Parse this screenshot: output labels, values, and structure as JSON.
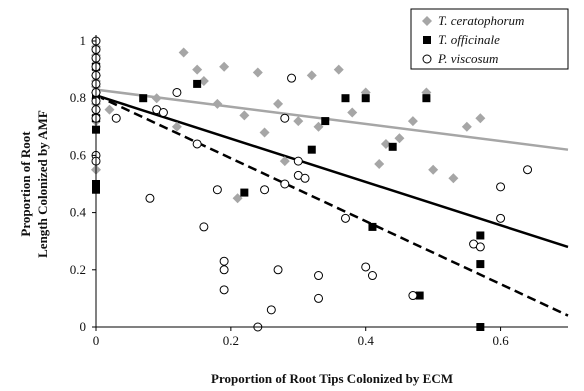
{
  "chart_data": {
    "type": "scatter",
    "xlabel": "Proportion of Root Tips Colonized by ECM",
    "ylabel": "Proportion of Root Length Colonized by AMF",
    "xlim": [
      0,
      0.7
    ],
    "ylim": [
      0,
      1
    ],
    "x_ticks": [
      "0",
      "0.2",
      "0.4",
      "0.6"
    ],
    "y_ticks": [
      "0",
      "0.2",
      "0.4",
      "0.6",
      "0.8",
      "1"
    ],
    "grid": false,
    "legend_position": "top-right",
    "series": [
      {
        "name": "T. ceratophorum",
        "marker": "diamond",
        "color": "#a6a6a6",
        "points": [
          [
            0.0,
            0.98
          ],
          [
            0.0,
            0.95
          ],
          [
            0.0,
            0.92
          ],
          [
            0.0,
            0.9
          ],
          [
            0.0,
            0.88
          ],
          [
            0.0,
            0.86
          ],
          [
            0.0,
            0.84
          ],
          [
            0.0,
            0.82
          ],
          [
            0.0,
            0.8
          ],
          [
            0.0,
            0.78
          ],
          [
            0.0,
            0.76
          ],
          [
            0.0,
            0.74
          ],
          [
            0.0,
            0.72
          ],
          [
            0.0,
            0.55
          ],
          [
            0.02,
            0.76
          ],
          [
            0.09,
            0.8
          ],
          [
            0.13,
            0.96
          ],
          [
            0.15,
            0.9
          ],
          [
            0.16,
            0.86
          ],
          [
            0.18,
            0.78
          ],
          [
            0.19,
            0.91
          ],
          [
            0.22,
            0.74
          ],
          [
            0.24,
            0.89
          ],
          [
            0.25,
            0.68
          ],
          [
            0.27,
            0.78
          ],
          [
            0.28,
            0.58
          ],
          [
            0.3,
            0.72
          ],
          [
            0.32,
            0.88
          ],
          [
            0.33,
            0.7
          ],
          [
            0.36,
            0.9
          ],
          [
            0.38,
            0.75
          ],
          [
            0.4,
            0.82
          ],
          [
            0.42,
            0.57
          ],
          [
            0.43,
            0.64
          ],
          [
            0.45,
            0.66
          ],
          [
            0.47,
            0.72
          ],
          [
            0.49,
            0.82
          ],
          [
            0.5,
            0.55
          ],
          [
            0.53,
            0.52
          ],
          [
            0.55,
            0.7
          ],
          [
            0.57,
            0.73
          ],
          [
            0.21,
            0.45
          ],
          [
            0.12,
            0.7
          ]
        ],
        "trendline": {
          "style": "solid",
          "color": "#a6a6a6",
          "x": [
            0,
            0.7
          ],
          "y": [
            0.83,
            0.62
          ]
        }
      },
      {
        "name": "T. officinale",
        "marker": "square",
        "color": "#000000",
        "points": [
          [
            0.0,
            0.91
          ],
          [
            0.0,
            0.81
          ],
          [
            0.0,
            0.73
          ],
          [
            0.0,
            0.69
          ],
          [
            0.0,
            0.5
          ],
          [
            0.0,
            0.48
          ],
          [
            0.07,
            0.8
          ],
          [
            0.15,
            0.85
          ],
          [
            0.22,
            0.47
          ],
          [
            0.32,
            0.62
          ],
          [
            0.34,
            0.72
          ],
          [
            0.37,
            0.8
          ],
          [
            0.4,
            0.8
          ],
          [
            0.41,
            0.35
          ],
          [
            0.44,
            0.63
          ],
          [
            0.48,
            0.11
          ],
          [
            0.49,
            0.8
          ],
          [
            0.57,
            0.32
          ],
          [
            0.57,
            0.22
          ],
          [
            0.57,
            0.0
          ]
        ],
        "trendline": {
          "style": "solid",
          "color": "#000000",
          "x": [
            0,
            0.7
          ],
          "y": [
            0.81,
            0.28
          ]
        }
      },
      {
        "name": "P. viscosum",
        "marker": "circle",
        "color": "#000000",
        "points": [
          [
            0.0,
            1.0
          ],
          [
            0.0,
            0.97
          ],
          [
            0.0,
            0.94
          ],
          [
            0.0,
            0.91
          ],
          [
            0.0,
            0.88
          ],
          [
            0.0,
            0.85
          ],
          [
            0.0,
            0.82
          ],
          [
            0.0,
            0.79
          ],
          [
            0.0,
            0.76
          ],
          [
            0.0,
            0.73
          ],
          [
            0.0,
            0.6
          ],
          [
            0.0,
            0.58
          ],
          [
            0.03,
            0.73
          ],
          [
            0.08,
            0.45
          ],
          [
            0.09,
            0.76
          ],
          [
            0.1,
            0.75
          ],
          [
            0.12,
            0.82
          ],
          [
            0.15,
            0.64
          ],
          [
            0.16,
            0.35
          ],
          [
            0.18,
            0.48
          ],
          [
            0.19,
            0.13
          ],
          [
            0.19,
            0.23
          ],
          [
            0.19,
            0.2
          ],
          [
            0.24,
            0.0
          ],
          [
            0.25,
            0.48
          ],
          [
            0.26,
            0.06
          ],
          [
            0.27,
            0.2
          ],
          [
            0.28,
            0.73
          ],
          [
            0.28,
            0.5
          ],
          [
            0.29,
            0.87
          ],
          [
            0.3,
            0.53
          ],
          [
            0.3,
            0.58
          ],
          [
            0.31,
            0.52
          ],
          [
            0.33,
            0.18
          ],
          [
            0.33,
            0.1
          ],
          [
            0.37,
            0.38
          ],
          [
            0.4,
            0.21
          ],
          [
            0.41,
            0.18
          ],
          [
            0.47,
            0.11
          ],
          [
            0.56,
            0.29
          ],
          [
            0.57,
            0.28
          ],
          [
            0.6,
            0.49
          ],
          [
            0.6,
            0.38
          ],
          [
            0.64,
            0.55
          ]
        ],
        "trendline": {
          "style": "dashed",
          "color": "#000000",
          "x": [
            0,
            0.7
          ],
          "y": [
            0.81,
            0.04
          ]
        }
      }
    ]
  }
}
